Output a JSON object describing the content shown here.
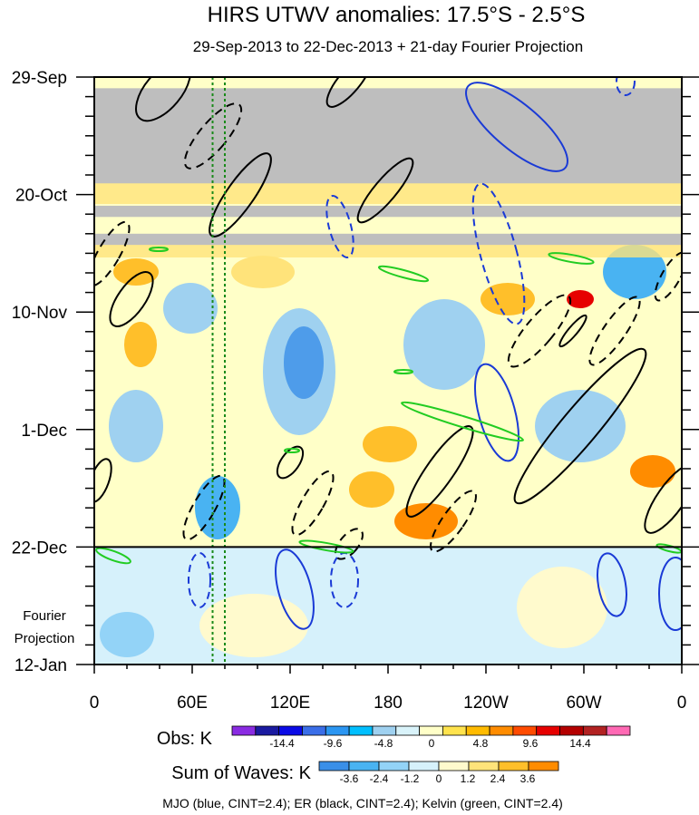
{
  "chart_data": {
    "type": "heatmap",
    "title": "HIRS UTWV anomalies: 17.5°S - 2.5°S",
    "subtitle": "29-Sep-2013 to 22-Dec-2013 + 21-day Fourier Projection",
    "x_ticks": [
      {
        "lon": 0,
        "label": "0"
      },
      {
        "lon": 60,
        "label": "60E"
      },
      {
        "lon": 120,
        "label": "120E"
      },
      {
        "lon": 180,
        "label": "180"
      },
      {
        "lon": 240,
        "label": "120W"
      },
      {
        "lon": 300,
        "label": "60W"
      },
      {
        "lon": 360,
        "label": "0"
      }
    ],
    "x_range": [
      0,
      360
    ],
    "y_range_days": [
      0,
      105
    ],
    "y_ticks": [
      {
        "day": 0,
        "label": "29-Sep"
      },
      {
        "day": 21,
        "label": "20-Oct"
      },
      {
        "day": 42,
        "label": "10-Nov"
      },
      {
        "day": 63,
        "label": "1-Dec"
      },
      {
        "day": 84,
        "label": "22-Dec"
      },
      {
        "day": 105,
        "label": "12-Jan"
      }
    ],
    "projection_start_day": 84,
    "projection_label_line1": "Fourier",
    "projection_label_line2": "Projection",
    "reference_lon_lines": [
      72.5,
      80
    ],
    "missing_data_bands_days": [
      [
        2,
        19
      ],
      [
        23,
        25
      ],
      [
        28,
        30
      ]
    ],
    "obs_colorbar": {
      "label": "Obs: K",
      "tick_labels": [
        "-14.4",
        "-9.6",
        "-4.8",
        "0",
        "4.8",
        "9.6",
        "14.4"
      ],
      "colors": [
        "#8a2be2",
        "#1a1aa0",
        "#0a0ae6",
        "#3a6ee8",
        "#2b96f2",
        "#00bfff",
        "#9fd1f0",
        "#d9f3fa",
        "#ffffc8",
        "#ffe34d",
        "#ffbb00",
        "#ff8c00",
        "#ff4b00",
        "#e60000",
        "#b40000",
        "#b22222",
        "#ff69b4"
      ]
    },
    "waves_colorbar": {
      "label": "Sum of Waves: K",
      "tick_labels": [
        "-3.6",
        "-2.4",
        "-1.2",
        "0",
        "1.2",
        "2.4",
        "3.6"
      ],
      "colors": [
        "#3a8fe8",
        "#49b3f2",
        "#93d3f7",
        "#d6f1fb",
        "#fffacd",
        "#ffe37a",
        "#ffbf2a",
        "#ff8c00"
      ]
    },
    "series": [
      {
        "name": "MJO",
        "color": "blue",
        "cint": 2.4
      },
      {
        "name": "ER",
        "color": "black",
        "cint": 2.4
      },
      {
        "name": "Kelvin",
        "color": "green",
        "cint": 2.4
      }
    ],
    "legend_note": "MJO (blue, CINT=2.4); ER (black, CINT=2.4); Kelvin (green, CINT=2.4)"
  }
}
